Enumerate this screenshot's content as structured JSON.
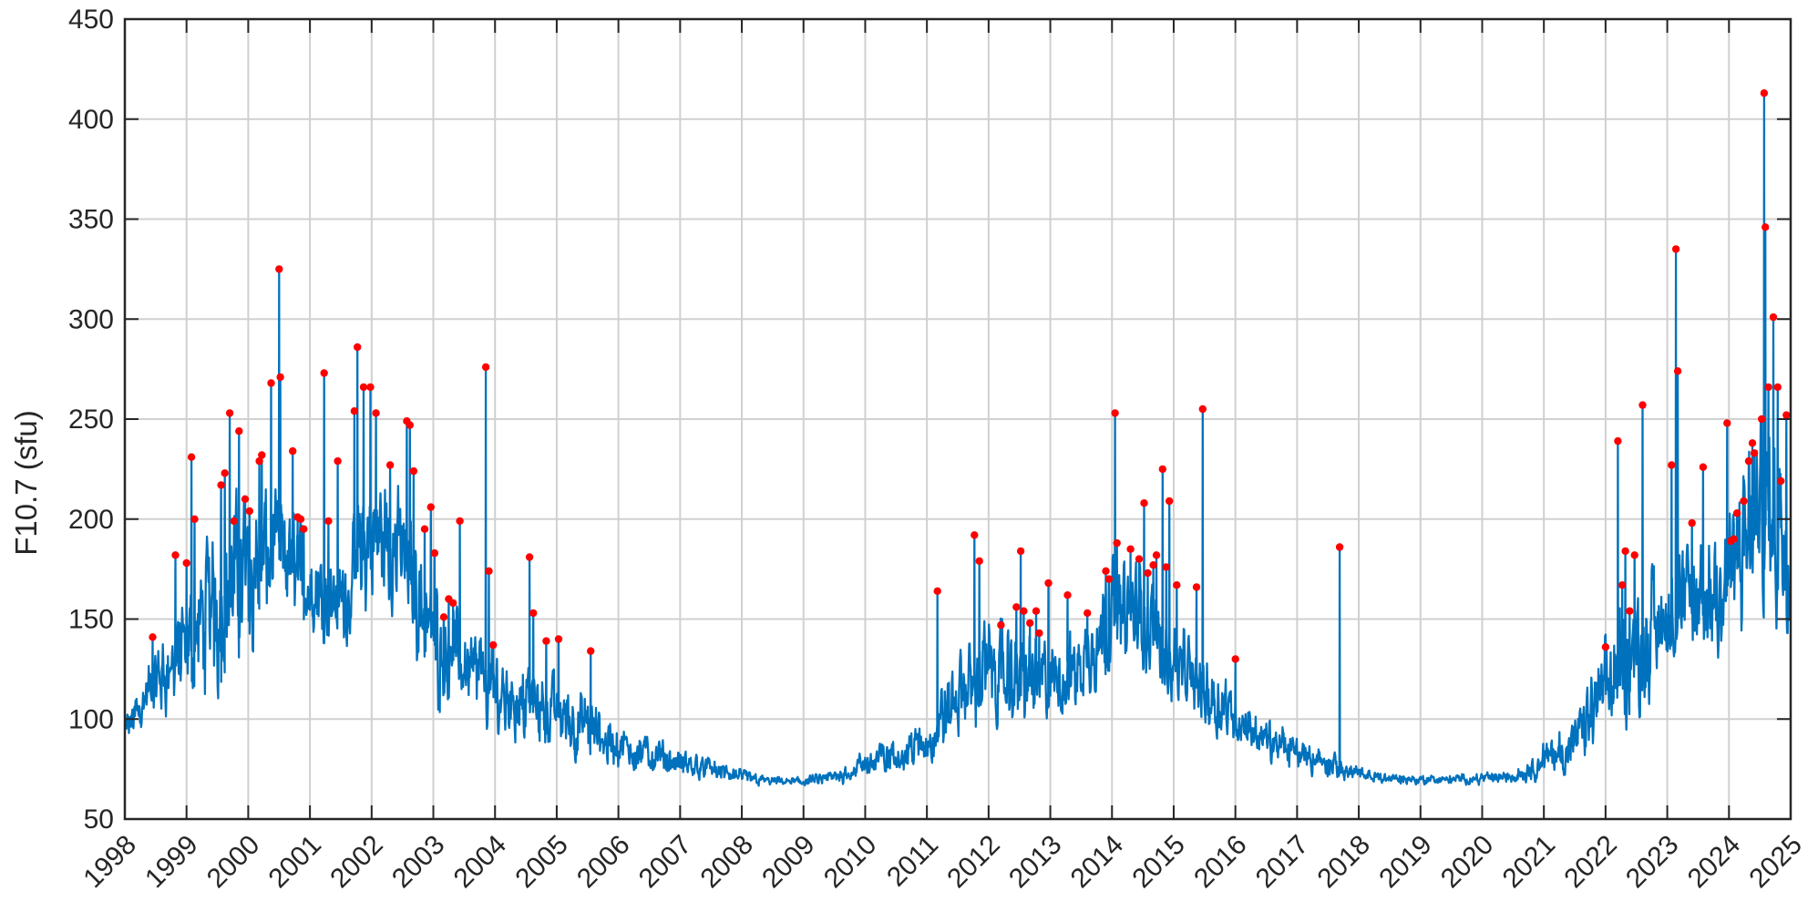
{
  "chart_data": {
    "type": "line",
    "title": "",
    "xlabel": "",
    "ylabel": "F10.7 (sfu)",
    "xlim": [
      1998,
      2025
    ],
    "ylim": [
      50,
      450
    ],
    "x_ticks": [
      "1998",
      "1999",
      "2000",
      "2001",
      "2002",
      "2003",
      "2004",
      "2005",
      "2006",
      "2007",
      "2008",
      "2009",
      "2010",
      "2011",
      "2012",
      "2013",
      "2014",
      "2015",
      "2016",
      "2017",
      "2018",
      "2019",
      "2020",
      "2021",
      "2022",
      "2023",
      "2024",
      "2025"
    ],
    "y_ticks": [
      "50",
      "100",
      "150",
      "200",
      "250",
      "300",
      "350",
      "400",
      "450"
    ],
    "grid": true,
    "colors": {
      "line": "#0072bd",
      "peak": "#ff0000",
      "axes": "#262626",
      "grid": "#d0d0d0"
    },
    "series": [
      {
        "values_envelope": [
          [
            1998.0,
            88,
            98
          ],
          [
            1998.5,
            105,
            130
          ],
          [
            1999.0,
            115,
            150
          ],
          [
            1999.5,
            125,
            185
          ],
          [
            2000.0,
            140,
            200
          ],
          [
            2000.5,
            160,
            200
          ],
          [
            2001.0,
            150,
            180
          ],
          [
            2001.5,
            140,
            170
          ],
          [
            2002.0,
            165,
            215
          ],
          [
            2002.5,
            160,
            200
          ],
          [
            2003.0,
            115,
            160
          ],
          [
            2003.5,
            110,
            140
          ],
          [
            2004.0,
            95,
            125
          ],
          [
            2004.5,
            95,
            120
          ],
          [
            2005.0,
            88,
            115
          ],
          [
            2005.5,
            82,
            105
          ],
          [
            2006.0,
            78,
            92
          ],
          [
            2006.5,
            75,
            88
          ],
          [
            2007.0,
            72,
            82
          ],
          [
            2007.5,
            70,
            78
          ],
          [
            2008.0,
            68,
            73
          ],
          [
            2008.5,
            67,
            70
          ],
          [
            2009.0,
            67,
            70
          ],
          [
            2009.5,
            68,
            73
          ],
          [
            2010.0,
            72,
            82
          ],
          [
            2010.5,
            75,
            88
          ],
          [
            2011.0,
            80,
            95
          ],
          [
            2011.5,
            95,
            125
          ],
          [
            2012.0,
            105,
            140
          ],
          [
            2012.5,
            100,
            135
          ],
          [
            2013.0,
            100,
            130
          ],
          [
            2013.5,
            110,
            140
          ],
          [
            2014.0,
            135,
            170
          ],
          [
            2014.5,
            130,
            165
          ],
          [
            2015.0,
            110,
            140
          ],
          [
            2015.5,
            100,
            125
          ],
          [
            2016.0,
            90,
            110
          ],
          [
            2016.5,
            80,
            95
          ],
          [
            2017.0,
            76,
            88
          ],
          [
            2017.5,
            72,
            82
          ],
          [
            2018.0,
            69,
            74
          ],
          [
            2018.5,
            68,
            72
          ],
          [
            2019.0,
            68,
            71
          ],
          [
            2019.5,
            68,
            71
          ],
          [
            2020.0,
            68,
            72
          ],
          [
            2020.5,
            69,
            73
          ],
          [
            2021.0,
            72,
            85
          ],
          [
            2021.5,
            78,
            95
          ],
          [
            2022.0,
            95,
            130
          ],
          [
            2022.5,
            110,
            155
          ],
          [
            2023.0,
            130,
            170
          ],
          [
            2023.5,
            135,
            175
          ],
          [
            2024.0,
            145,
            190
          ],
          [
            2024.5,
            165,
            230
          ],
          [
            2024.99,
            160,
            230
          ]
        ],
        "peaks": [
          [
            1998.45,
            141
          ],
          [
            1998.82,
            182
          ],
          [
            1999.0,
            178
          ],
          [
            1999.08,
            231
          ],
          [
            1999.13,
            200
          ],
          [
            1999.56,
            217
          ],
          [
            1999.62,
            223
          ],
          [
            1999.7,
            253
          ],
          [
            1999.77,
            199
          ],
          [
            1999.85,
            244
          ],
          [
            1999.95,
            210
          ],
          [
            2000.02,
            204
          ],
          [
            2000.18,
            229
          ],
          [
            2000.22,
            232
          ],
          [
            2000.37,
            268
          ],
          [
            2000.5,
            325
          ],
          [
            2000.52,
            271
          ],
          [
            2000.72,
            234
          ],
          [
            2000.8,
            201
          ],
          [
            2000.85,
            200
          ],
          [
            2000.9,
            195
          ],
          [
            2001.23,
            273
          ],
          [
            2001.3,
            199
          ],
          [
            2001.45,
            229
          ],
          [
            2001.72,
            254
          ],
          [
            2001.77,
            286
          ],
          [
            2001.87,
            266
          ],
          [
            2001.98,
            266
          ],
          [
            2002.07,
            253
          ],
          [
            2002.3,
            227
          ],
          [
            2002.57,
            249
          ],
          [
            2002.62,
            247
          ],
          [
            2002.68,
            224
          ],
          [
            2002.86,
            195
          ],
          [
            2002.96,
            206
          ],
          [
            2003.02,
            183
          ],
          [
            2003.17,
            151
          ],
          [
            2003.25,
            160
          ],
          [
            2003.32,
            158
          ],
          [
            2003.43,
            199
          ],
          [
            2003.85,
            276
          ],
          [
            2003.9,
            174
          ],
          [
            2003.97,
            137
          ],
          [
            2004.56,
            181
          ],
          [
            2004.62,
            153
          ],
          [
            2004.83,
            139
          ],
          [
            2005.03,
            140
          ],
          [
            2005.55,
            134
          ],
          [
            2011.17,
            164
          ],
          [
            2011.77,
            192
          ],
          [
            2011.85,
            179
          ],
          [
            2012.2,
            147
          ],
          [
            2012.45,
            156
          ],
          [
            2012.52,
            184
          ],
          [
            2012.57,
            154
          ],
          [
            2012.67,
            148
          ],
          [
            2012.77,
            154
          ],
          [
            2012.82,
            143
          ],
          [
            2012.97,
            168
          ],
          [
            2013.28,
            162
          ],
          [
            2013.6,
            153
          ],
          [
            2013.9,
            174
          ],
          [
            2013.95,
            170
          ],
          [
            2014.05,
            253
          ],
          [
            2014.08,
            188
          ],
          [
            2014.3,
            185
          ],
          [
            2014.44,
            180
          ],
          [
            2014.52,
            208
          ],
          [
            2014.58,
            173
          ],
          [
            2014.67,
            177
          ],
          [
            2014.72,
            182
          ],
          [
            2014.82,
            225
          ],
          [
            2014.88,
            176
          ],
          [
            2014.93,
            209
          ],
          [
            2015.05,
            167
          ],
          [
            2015.37,
            166
          ],
          [
            2015.47,
            255
          ],
          [
            2016.0,
            130
          ],
          [
            2017.69,
            186
          ],
          [
            2022.0,
            136
          ],
          [
            2022.2,
            239
          ],
          [
            2022.27,
            167
          ],
          [
            2022.32,
            184
          ],
          [
            2022.39,
            154
          ],
          [
            2022.47,
            182
          ],
          [
            2022.6,
            257
          ],
          [
            2023.07,
            227
          ],
          [
            2023.14,
            335
          ],
          [
            2023.17,
            274
          ],
          [
            2023.4,
            198
          ],
          [
            2023.58,
            226
          ],
          [
            2023.97,
            248
          ],
          [
            2024.03,
            189
          ],
          [
            2024.08,
            190
          ],
          [
            2024.13,
            203
          ],
          [
            2024.24,
            209
          ],
          [
            2024.32,
            229
          ],
          [
            2024.38,
            238
          ],
          [
            2024.41,
            233
          ],
          [
            2024.53,
            250
          ],
          [
            2024.57,
            413
          ],
          [
            2024.59,
            346
          ],
          [
            2024.64,
            266
          ],
          [
            2024.72,
            301
          ],
          [
            2024.79,
            266
          ],
          [
            2024.84,
            219
          ],
          [
            2024.93,
            252
          ]
        ]
      }
    ]
  }
}
